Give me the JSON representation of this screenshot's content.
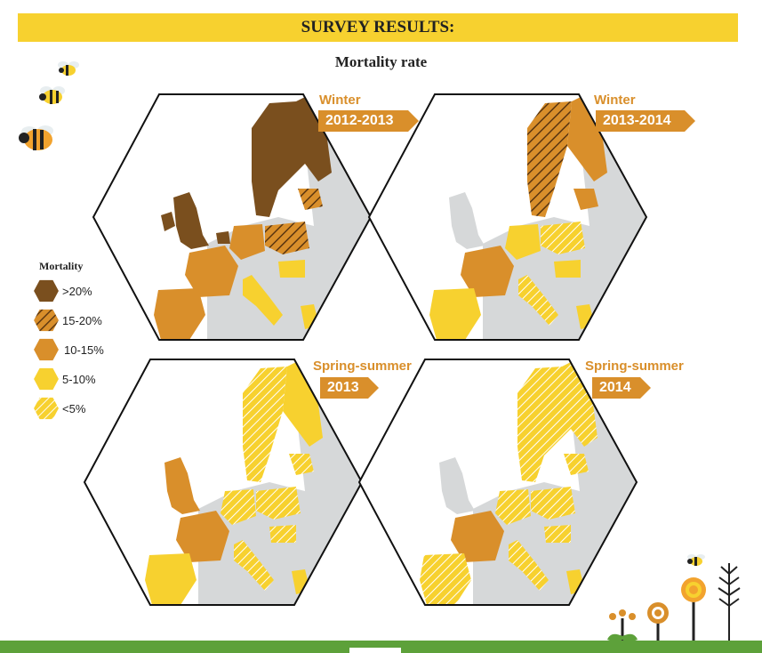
{
  "header": {
    "title": "SURVEY RESULTS:"
  },
  "subtitle": "Mortality rate",
  "panels": [
    {
      "season": "Winter",
      "period": "2012-2013"
    },
    {
      "season": "Winter",
      "period": "2013-2014"
    },
    {
      "season": "Spring-summer",
      "period": "2013"
    },
    {
      "season": "Spring-summer",
      "period": "2014"
    }
  ],
  "legend": {
    "title": "Mortality",
    "items": [
      {
        "label": ">20%",
        "color": "#7a4f1e",
        "pattern": "solid"
      },
      {
        "label": "15-20%",
        "color": "#d98f2b",
        "pattern": "hatched-dark"
      },
      {
        "label": "10-15%",
        "color": "#d98f2b",
        "pattern": "solid"
      },
      {
        "label": "5-10%",
        "color": "#f7d12f",
        "pattern": "solid"
      },
      {
        "label": "<5%",
        "color": "#f7d12f",
        "pattern": "hatched-light"
      }
    ]
  },
  "colors": {
    "accent_yellow": "#f7d12f",
    "accent_orange": "#d98f2b",
    "dark_brown": "#7a4f1e",
    "land_grey": "#d6d8d9",
    "footer_green": "#5da13a"
  },
  "map_colors": {
    "winter_2012_2013": {
      "uk": ">20%",
      "scandinavia": ">20%",
      "baltics": "15-20%",
      "poland": "15-20%",
      "france": "10-15%",
      "iberia": "10-15%",
      "germany": "10-15%",
      "italy": "<5%",
      "central": "5-10%"
    },
    "winter_2013_2014": {
      "uk": "none",
      "sweden": "15-20%",
      "finland": "10-15%",
      "france": "10-15%",
      "iberia": "5-10%",
      "germany": "5-10%",
      "poland": "<5%",
      "italy": "<5%",
      "central": "5-10%"
    },
    "spring_2013": {
      "uk": "10-15%",
      "scandinavia": "<5%",
      "finland": "5-10%",
      "france": "10-15%",
      "iberia": "5-10%",
      "germany": "<5%",
      "poland": "<5%",
      "italy": "<5%"
    },
    "spring_2014": {
      "uk": "none",
      "scandinavia": "<5%",
      "finland": "<5%",
      "france": "10-15%",
      "iberia": "<5%",
      "germany": "<5%",
      "poland": "<5%",
      "italy": "<5%"
    }
  }
}
